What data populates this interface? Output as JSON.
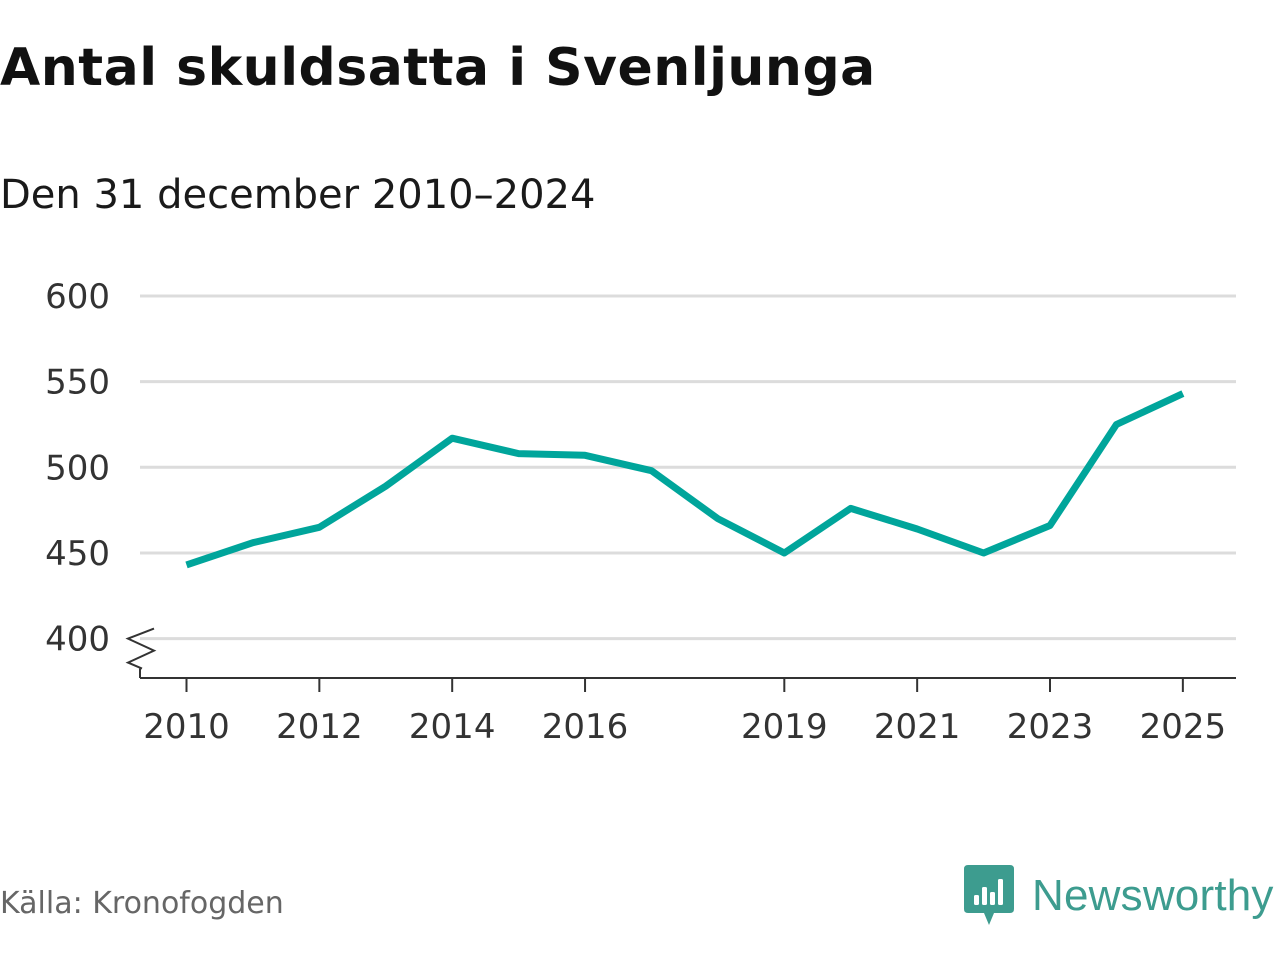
{
  "chart_data": {
    "type": "line",
    "title": "Antal skuldsatta i Svenljunga",
    "subtitle": "Den 31 december 2010–2024",
    "xlabel": "",
    "ylabel": "",
    "x": [
      2010,
      2011,
      2012,
      2013,
      2014,
      2015,
      2016,
      2017,
      2018,
      2019,
      2020,
      2021,
      2022,
      2023,
      2024,
      2025
    ],
    "x_tick_labels": [
      "2010",
      "2012",
      "2014",
      "2016",
      "2019",
      "2021",
      "2023",
      "2025"
    ],
    "x_tick_values": [
      2010,
      2012,
      2014,
      2016,
      2019,
      2021,
      2023,
      2025
    ],
    "xlim": [
      2009.3,
      2025.8
    ],
    "y_tick_labels": [
      "400",
      "450",
      "500",
      "550",
      "600"
    ],
    "y_tick_values": [
      400,
      450,
      500,
      550,
      600
    ],
    "ylim": [
      377,
      600
    ],
    "grid": true,
    "axis_break": true,
    "series": [
      {
        "name": "Antal skuldsatta",
        "color": "#00a59b",
        "values": [
          443,
          456,
          465,
          489,
          517,
          508,
          507,
          498,
          470,
          450,
          476,
          464,
          450,
          466,
          525,
          543
        ]
      }
    ]
  },
  "footer": {
    "source": "Källa: Kronofogden",
    "brand": "Newsworthy",
    "brand_color": "#3d9c8f",
    "brand_icon": "newsworthy-logo-icon"
  }
}
